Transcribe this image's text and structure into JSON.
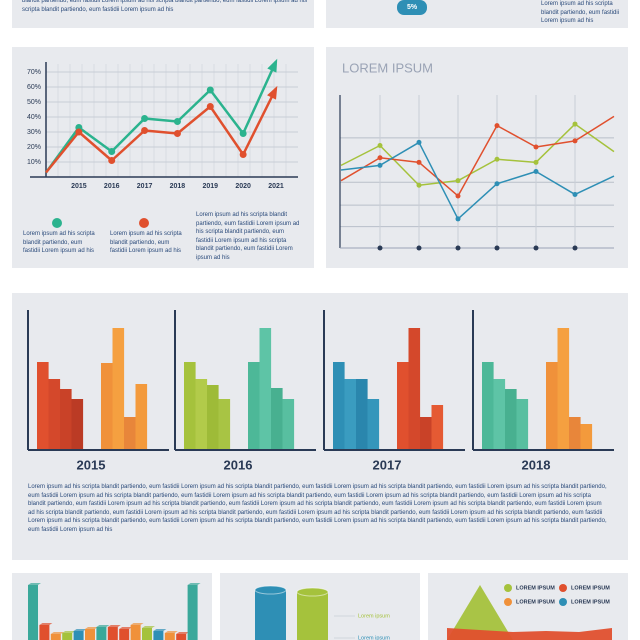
{
  "texts": {
    "top_left": "blandit partiendo, eum fastidii Lorem ipsum ad his scripta blandit partiendo, eum fastidii Lorem ipsum ad his scripta blandit partiendo, eum fastidii Lorem ipsum ad his",
    "badge": "5%",
    "top_right": "Lorem ipsum ad his scripta blandit partiendo, eum fastidii Lorem ipsum ad his",
    "paragraph": "Lorem ipsum ad his scripta blandit partiendo, eum fastidii Lorem ipsum ad his scripta blandit partiendo, eum fastidii Lorem ipsum ad his scripta blandit partiendo, eum fastidii Lorem ipsum ad his scripta blandit partiendo, eum fastidii Lorem ipsum ad his scripta blandit partiendo, eum fastidii Lorem ipsum ad his scripta blandit partiendo, eum fastidii Lorem ipsum ad his scripta blandit partiendo, eum fastidii Lorem ipsum ad his scripta blandit partiendo, eum fastidii Lorem ipsum ad his scripta blandit partiendo, eum fastidii Lorem ipsum ad his scripta blandit partiendo, eum fastidii Lorem ipsum ad his scripta blandit partiendo, eum fastidii Lorem ipsum ad his scripta blandit partiendo, eum fastidii Lorem ipsum ad his scripta blandit partiendo, eum fastidii Lorem ipsum ad his scripta blandit partiendo, eum fastidii Lorem ipsum ad his scripta blandit partiendo, eum fastidii Lorem ipsum ad his scripta blandit partiendo, eum fastidii Lorem ipsum ad his scripta blandit partiendo, eum fastidii Lorem ipsum ad his scripta blandit partiendo, eum fastidii Lorem ipsum ad his scripta blandit partiendo, eum fastidii Lorem ipsum ad his"
  },
  "chart_data": [
    {
      "type": "line",
      "categories": [
        null,
        "2015",
        "2016",
        "2017",
        "2018",
        "2019",
        "2020",
        "2021"
      ],
      "ylim": [
        0,
        75
      ],
      "yticks": [
        {
          "value": 10,
          "label": "10%"
        },
        {
          "value": 20,
          "label": "20%"
        },
        {
          "value": 30,
          "label": "30%"
        },
        {
          "value": 40,
          "label": "40%"
        },
        {
          "value": 50,
          "label": "50%"
        },
        {
          "value": 60,
          "label": "60%"
        },
        {
          "value": 70,
          "label": "70%"
        }
      ],
      "grid": true,
      "series": [
        {
          "name": "Lorem ipsum ad his scripta blandit partiendo, eum fastidii Lorem ipsum ad his",
          "color": "#2bb38e",
          "values": [
            3,
            33,
            17,
            39,
            37,
            58,
            29,
            77
          ]
        },
        {
          "name": "Lorem ipsum ad his scripta blandit partiendo, eum fastidii Lorem ipsum ad his",
          "color": "#e0502e",
          "values": [
            3,
            30,
            11,
            31,
            29,
            47,
            15,
            59
          ]
        }
      ],
      "annotation": "Lorem ipsum ad his scripta blandit partiendo, eum fastidii Lorem ipsum ad his scripta blandit partiendo, eum fastidii Lorem ipsum ad his scripta blandit partiendo, eum fastidii Lorem ipsum ad his"
    },
    {
      "type": "line",
      "title": "LOREM IPSUM",
      "categories": [
        null,
        null,
        null,
        null,
        null,
        null,
        null,
        null
      ],
      "ylim": [
        0,
        100
      ],
      "yticks": [
        14,
        28,
        43,
        72
      ],
      "grid": true,
      "series": [
        {
          "color": "#a5c23c",
          "values": [
            54,
            67,
            41,
            44,
            58,
            56,
            81,
            63
          ]
        },
        {
          "color": "#e0502e",
          "values": [
            44,
            59,
            56,
            34,
            80,
            66,
            70,
            86
          ]
        },
        {
          "color": "#2e8fb5",
          "values": [
            51,
            54,
            69,
            19,
            42,
            50,
            35,
            47
          ]
        }
      ]
    },
    {
      "type": "bar",
      "title": "2015",
      "ylim": [
        0,
        140
      ],
      "values": [
        88,
        71,
        61,
        51,
        87,
        122,
        33,
        66
      ],
      "colors": [
        "#e0502e",
        "#d4482b",
        "#c94228",
        "#bb3b25",
        "#f0913a",
        "#f5a040",
        "#e8863a",
        "#f39a3c"
      ]
    },
    {
      "type": "bar",
      "title": "2016",
      "ylim": [
        0,
        140
      ],
      "values": [
        88,
        71,
        65,
        51,
        88,
        122,
        62,
        51
      ],
      "colors": [
        "#a5c23c",
        "#b2cb4a",
        "#9ebb38",
        "#a8c444",
        "#4db898",
        "#5ec4a6",
        "#48b090",
        "#58bfa0"
      ]
    },
    {
      "type": "bar",
      "title": "2017",
      "ylim": [
        0,
        140
      ],
      "values": [
        88,
        71,
        71,
        51,
        88,
        122,
        33,
        45
      ],
      "colors": [
        "#2e8fb5",
        "#3a9cc0",
        "#2a86ad",
        "#3596bb",
        "#e0502e",
        "#d4482b",
        "#c94228",
        "#e55a33"
      ]
    },
    {
      "type": "bar",
      "title": "2018",
      "ylim": [
        0,
        140
      ],
      "values": [
        88,
        71,
        61,
        51,
        88,
        122,
        33,
        26
      ],
      "colors": [
        "#4db898",
        "#5ec4a6",
        "#48b090",
        "#58bfa0",
        "#f0913a",
        "#f5a040",
        "#e8863a",
        "#f39a3c"
      ]
    },
    {
      "type": "bar",
      "ylim": [
        0,
        60
      ],
      "values": [
        55,
        15,
        6,
        7,
        9,
        11,
        13,
        13,
        11,
        15,
        12,
        9,
        7,
        6,
        55
      ],
      "colors": [
        "#3aa89a",
        "#e0502e",
        "#f0913a",
        "#a5c23c",
        "#2e8fb5",
        "#f0913a",
        "#3aa89a",
        "#e0502e",
        "#e0502e",
        "#f0913a",
        "#a5c23c",
        "#2e8fb5",
        "#f0913a",
        "#e0502e",
        "#3aa89a"
      ]
    },
    {
      "type": "cylinder",
      "ylim": [
        0,
        60
      ],
      "values": [
        50,
        48
      ],
      "colors": [
        "#2e8fb5",
        "#a5c23c"
      ],
      "labels": [
        "Lorem ipsum",
        "Lorem ipsum"
      ]
    },
    {
      "type": "area",
      "ylim": [
        0,
        60
      ],
      "categories": [
        null,
        null,
        null,
        null,
        null,
        null
      ],
      "series": [
        {
          "name": "LOREM IPSUM",
          "color": "#a5c23c",
          "values": [
            0,
            55,
            0,
            null,
            null,
            null
          ]
        },
        {
          "name": "LOREM IPSUM",
          "color": "#e0502e",
          "values": [
            12,
            10,
            8,
            9,
            8,
            12
          ]
        },
        {
          "name": "LOREM IPSUM",
          "color": "#f0913a"
        },
        {
          "name": "LOREM IPSUM",
          "color": "#2e8fb5"
        }
      ]
    }
  ]
}
